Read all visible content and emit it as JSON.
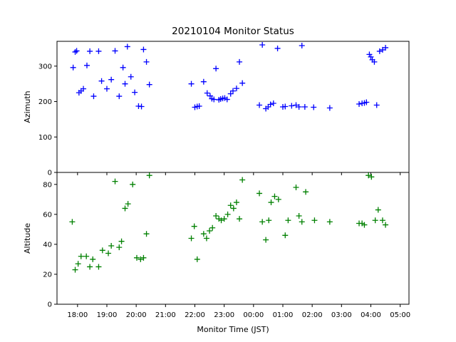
{
  "chart_data": {
    "type": "scatter",
    "title": "20210104 Monitor Status",
    "xlabel": "Monitor Time (JST)",
    "marker": "+",
    "x_tick_labels": [
      "18:00",
      "19:00",
      "20:00",
      "21:00",
      "22:00",
      "23:00",
      "00:00",
      "01:00",
      "02:00",
      "03:00",
      "04:00",
      "05:00"
    ],
    "x_domain_hours": [
      17.3,
      29.3
    ],
    "panels": [
      {
        "id": "azimuth",
        "ylabel": "Azimuth",
        "ylim": [
          0,
          370
        ],
        "y_ticks": [
          0,
          100,
          200,
          300
        ],
        "color": "#0000ff",
        "points": [
          [
            17.85,
            296
          ],
          [
            17.92,
            340
          ],
          [
            17.97,
            343
          ],
          [
            18.05,
            225
          ],
          [
            18.12,
            230
          ],
          [
            18.2,
            236
          ],
          [
            18.32,
            302
          ],
          [
            18.42,
            342
          ],
          [
            18.55,
            215
          ],
          [
            18.72,
            342
          ],
          [
            18.82,
            258
          ],
          [
            19.0,
            236
          ],
          [
            19.15,
            262
          ],
          [
            19.28,
            343
          ],
          [
            19.42,
            215
          ],
          [
            19.55,
            296
          ],
          [
            19.62,
            250
          ],
          [
            19.7,
            355
          ],
          [
            19.82,
            270
          ],
          [
            19.95,
            226
          ],
          [
            20.08,
            187
          ],
          [
            20.18,
            186
          ],
          [
            20.25,
            347
          ],
          [
            20.35,
            312
          ],
          [
            20.45,
            248
          ],
          [
            21.88,
            250
          ],
          [
            22.0,
            184
          ],
          [
            22.08,
            186
          ],
          [
            22.15,
            187
          ],
          [
            22.3,
            256
          ],
          [
            22.42,
            224
          ],
          [
            22.52,
            216
          ],
          [
            22.58,
            208
          ],
          [
            22.65,
            206
          ],
          [
            22.72,
            293
          ],
          [
            22.82,
            205
          ],
          [
            22.88,
            207
          ],
          [
            22.95,
            209
          ],
          [
            23.02,
            210
          ],
          [
            23.1,
            206
          ],
          [
            23.22,
            222
          ],
          [
            23.3,
            230
          ],
          [
            23.42,
            237
          ],
          [
            23.52,
            312
          ],
          [
            23.62,
            252
          ],
          [
            24.2,
            190
          ],
          [
            24.3,
            360
          ],
          [
            24.42,
            180
          ],
          [
            24.5,
            185
          ],
          [
            24.58,
            192
          ],
          [
            24.68,
            195
          ],
          [
            24.82,
            350
          ],
          [
            25.0,
            185
          ],
          [
            25.08,
            186
          ],
          [
            25.3,
            188
          ],
          [
            25.45,
            190
          ],
          [
            25.55,
            185
          ],
          [
            25.65,
            358
          ],
          [
            25.75,
            185
          ],
          [
            26.05,
            184
          ],
          [
            26.6,
            182
          ],
          [
            27.6,
            193
          ],
          [
            27.7,
            195
          ],
          [
            27.78,
            196
          ],
          [
            27.85,
            198
          ],
          [
            27.95,
            333
          ],
          [
            28.0,
            326
          ],
          [
            28.05,
            318
          ],
          [
            28.12,
            312
          ],
          [
            28.2,
            190
          ],
          [
            28.3,
            342
          ],
          [
            28.4,
            346
          ],
          [
            28.5,
            352
          ]
        ]
      },
      {
        "id": "altitude",
        "ylabel": "Altitude",
        "ylim": [
          0,
          88
        ],
        "y_ticks": [
          0,
          20,
          40,
          60,
          80
        ],
        "color": "#008000",
        "points": [
          [
            17.82,
            55
          ],
          [
            17.92,
            23
          ],
          [
            18.02,
            27
          ],
          [
            18.12,
            32
          ],
          [
            18.3,
            32
          ],
          [
            18.42,
            25
          ],
          [
            18.52,
            30
          ],
          [
            18.72,
            25
          ],
          [
            18.85,
            36
          ],
          [
            19.05,
            34
          ],
          [
            19.15,
            39
          ],
          [
            19.28,
            82
          ],
          [
            19.42,
            38
          ],
          [
            19.5,
            42
          ],
          [
            19.62,
            64
          ],
          [
            19.72,
            67
          ],
          [
            19.88,
            80
          ],
          [
            20.02,
            31
          ],
          [
            20.15,
            30
          ],
          [
            20.25,
            31
          ],
          [
            20.35,
            47
          ],
          [
            20.45,
            86
          ],
          [
            21.88,
            44
          ],
          [
            21.98,
            52
          ],
          [
            22.08,
            30
          ],
          [
            22.3,
            47
          ],
          [
            22.4,
            44
          ],
          [
            22.5,
            49
          ],
          [
            22.6,
            51
          ],
          [
            22.72,
            59
          ],
          [
            22.82,
            57
          ],
          [
            22.9,
            56
          ],
          [
            23.0,
            57
          ],
          [
            23.12,
            60
          ],
          [
            23.22,
            66
          ],
          [
            23.32,
            64
          ],
          [
            23.42,
            68
          ],
          [
            23.52,
            57
          ],
          [
            23.62,
            83
          ],
          [
            24.2,
            74
          ],
          [
            24.3,
            55
          ],
          [
            24.42,
            43
          ],
          [
            24.52,
            56
          ],
          [
            24.6,
            68
          ],
          [
            24.72,
            72
          ],
          [
            24.85,
            70
          ],
          [
            25.08,
            46
          ],
          [
            25.18,
            56
          ],
          [
            25.45,
            78
          ],
          [
            25.55,
            59
          ],
          [
            25.65,
            55
          ],
          [
            25.78,
            75
          ],
          [
            26.08,
            56
          ],
          [
            26.6,
            55
          ],
          [
            27.6,
            54
          ],
          [
            27.7,
            54
          ],
          [
            27.78,
            53
          ],
          [
            27.92,
            86
          ],
          [
            28.02,
            85
          ],
          [
            28.15,
            56
          ],
          [
            28.25,
            63
          ],
          [
            28.4,
            56
          ],
          [
            28.5,
            53
          ]
        ]
      }
    ]
  }
}
